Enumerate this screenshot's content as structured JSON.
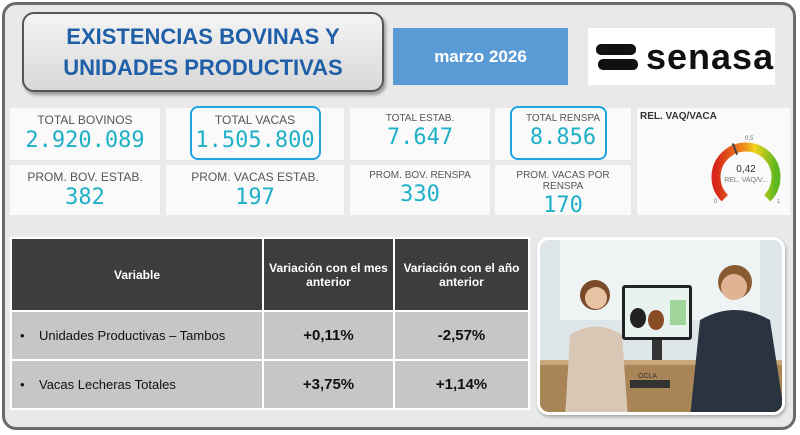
{
  "header": {
    "title_line1": "EXISTENCIAS BOVINAS Y",
    "title_line2": "UNIDADES PRODUCTIVAS",
    "date": "marzo 2026",
    "logo_text": "senasa"
  },
  "kpis": {
    "total_bovinos": {
      "label": "TOTAL BOVINOS",
      "value": "2.920.089"
    },
    "total_vacas": {
      "label": "TOTAL VACAS",
      "value": "1.505.800"
    },
    "total_estab": {
      "label": "TOTAL ESTAB.",
      "value": "7.647"
    },
    "total_renspa": {
      "label": "TOTAL RENSPA",
      "value": "8.856"
    },
    "prom_bov_estab": {
      "label": "PROM. BOV. ESTAB.",
      "value": "382"
    },
    "prom_vacas_estab": {
      "label": "PROM. VACAS ESTAB.",
      "value": "197"
    },
    "prom_bov_renspa": {
      "label": "PROM. BOV. RENSPA",
      "value": "330"
    },
    "prom_vacas_renspa": {
      "label": "PROM. VACAS POR RENSPA",
      "value": "170"
    }
  },
  "gauge": {
    "title": "REL. VAQ/VACA",
    "value": 0.42,
    "value_label": "0,42",
    "sub_label": "REL. VAQ/V...",
    "min": "0",
    "max": "1",
    "target": "0,5",
    "target_value": 0.5
  },
  "table": {
    "headers": [
      "Variable",
      "Variación con el mes anterior",
      "Variación con el año anterior"
    ],
    "rows": [
      {
        "variable": "Unidades Productivas – Tambos",
        "mes": "+0,11%",
        "anio": "-2,57%"
      },
      {
        "variable": "Vacas Lecheras Totales",
        "mes": "+3,75%",
        "anio": "+1,14%"
      }
    ]
  },
  "image": {
    "laptop_label": "OCLA"
  }
}
